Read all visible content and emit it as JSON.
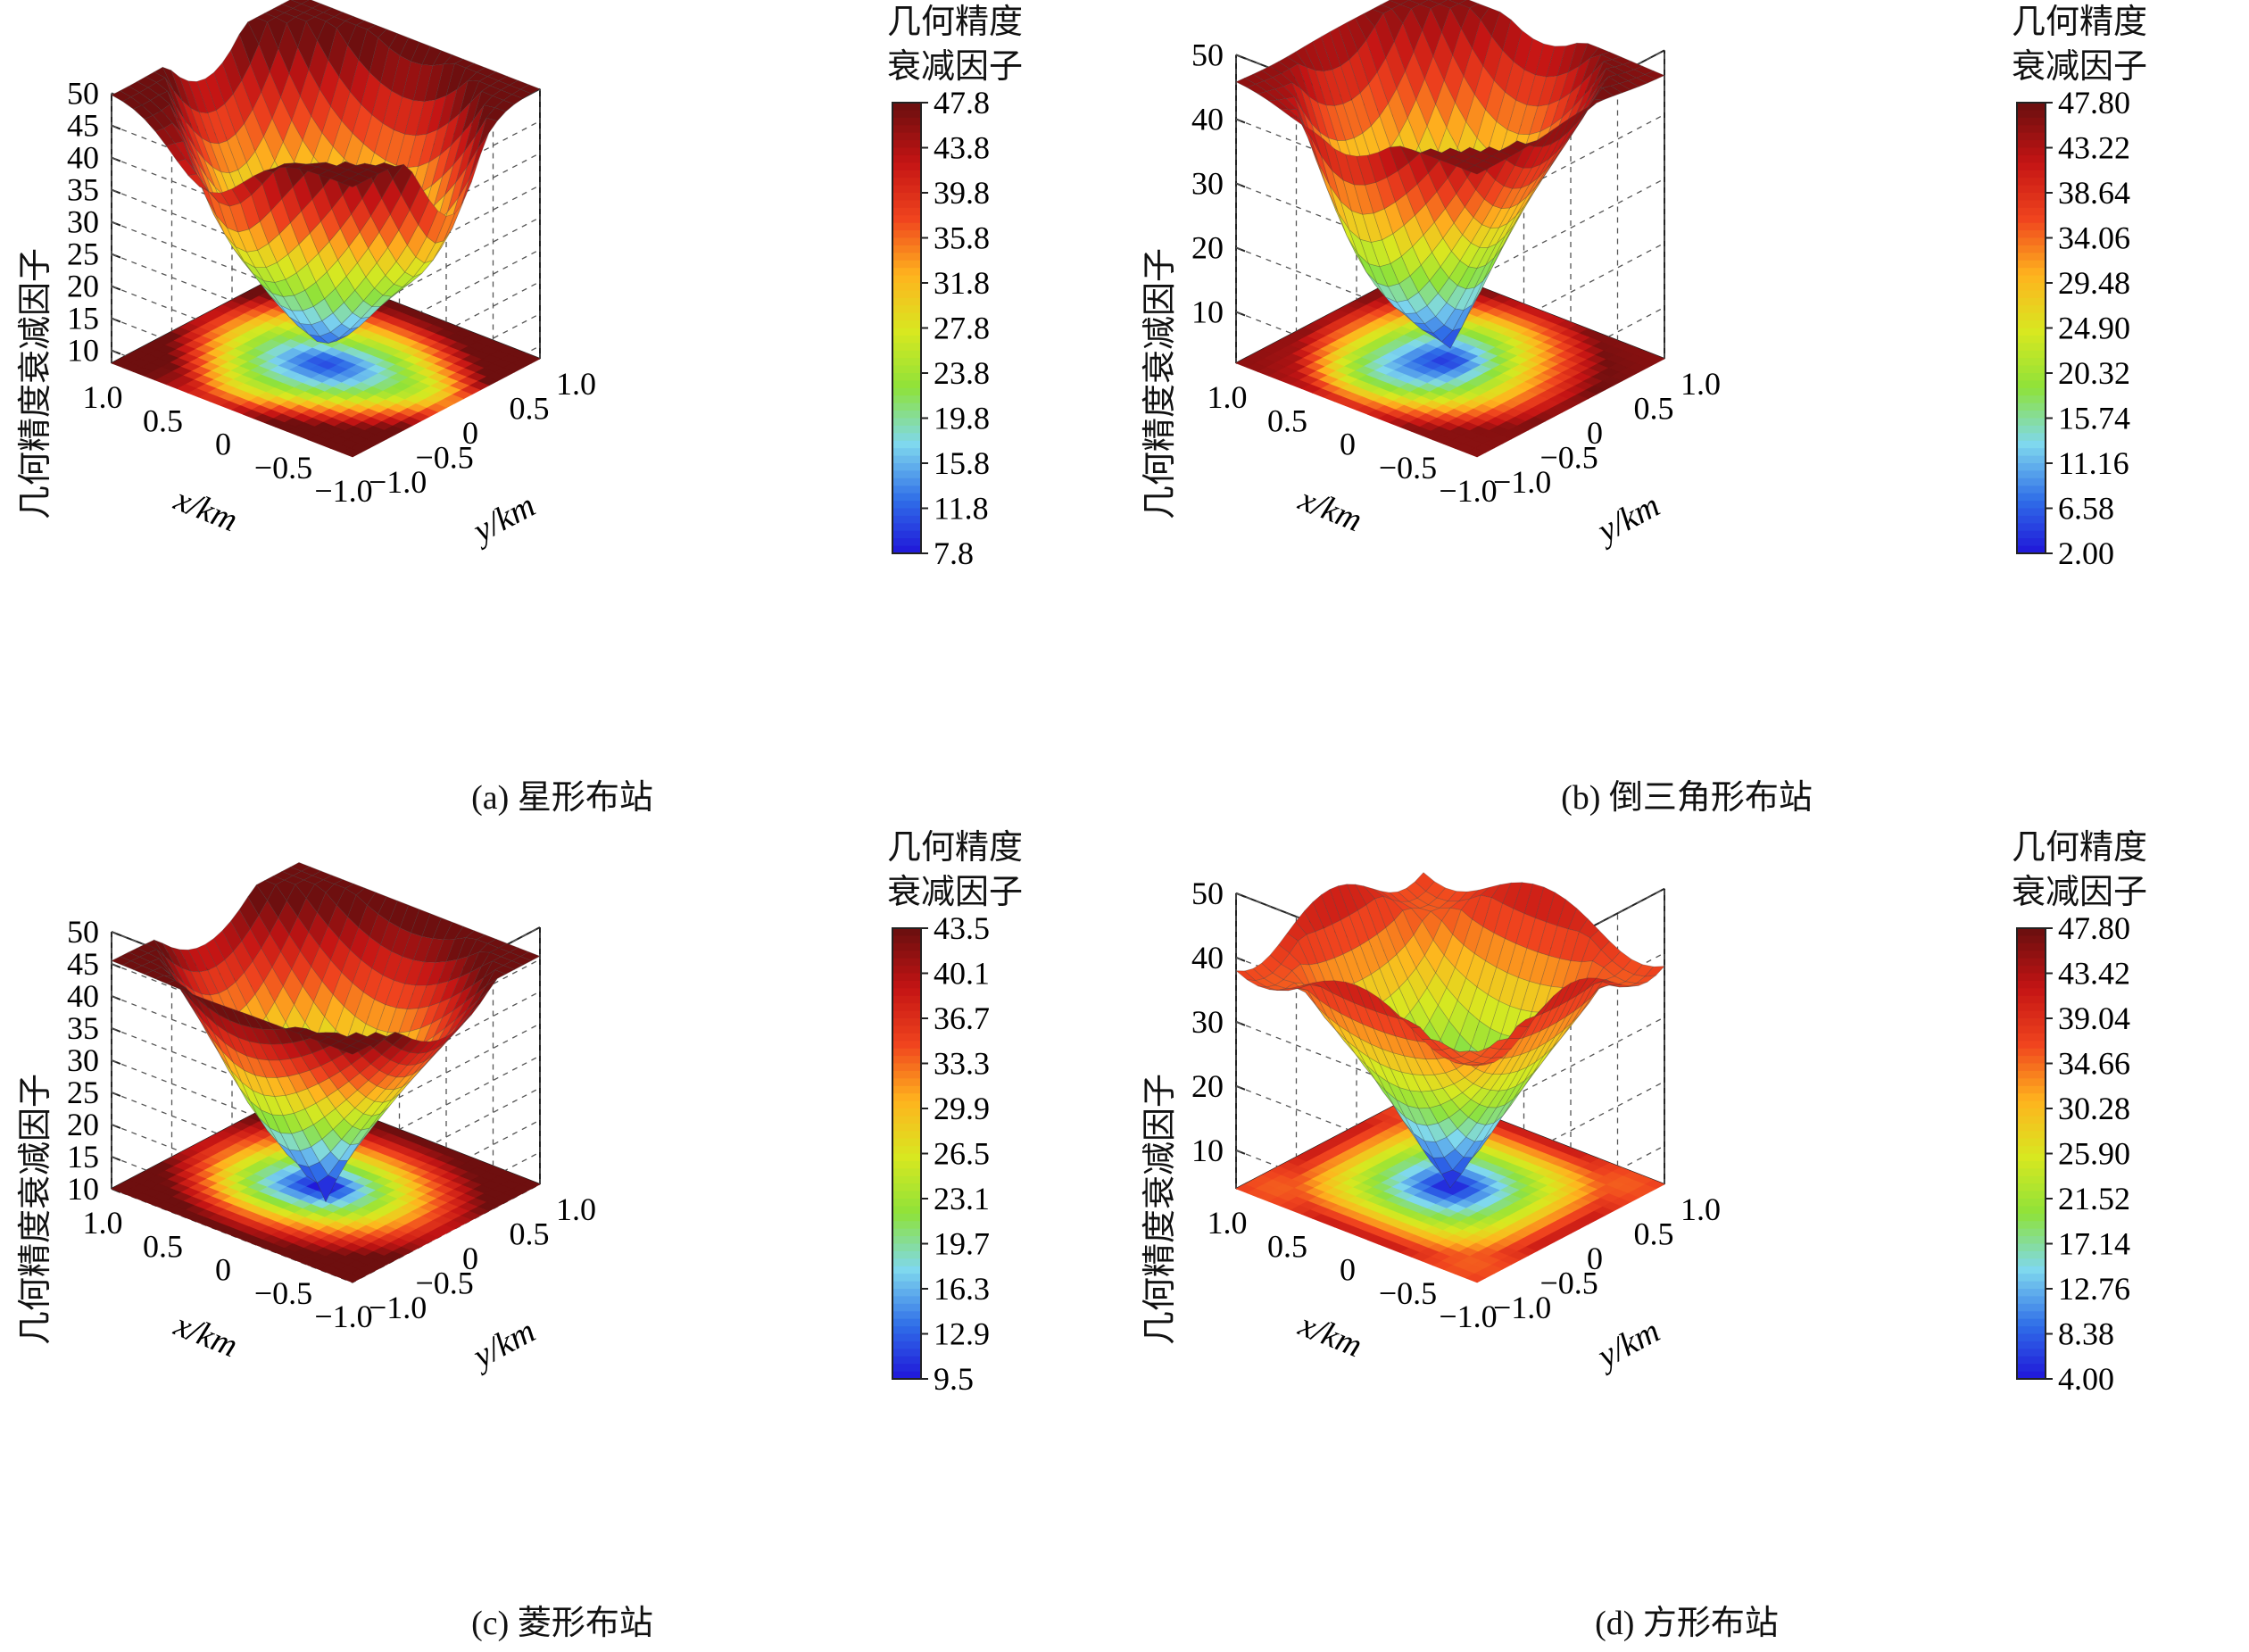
{
  "colorbar_title": [
    "几何精度",
    "衰减因子"
  ],
  "colors": {
    "cmap": [
      "#1f10d8",
      "#2f6de8",
      "#7fd8ee",
      "#8ee23a",
      "#d8e820",
      "#ffb41e",
      "#f0441e",
      "#c41414",
      "#6e0f0f"
    ]
  },
  "chart_data": [
    {
      "type": "surface3d",
      "caption": "(a) 星形布站",
      "xlabel": "x/km",
      "ylabel": "y/km",
      "zlabel": "几何精度衰减因子",
      "x_ticks": [
        "1.0",
        "0.5",
        "0",
        "−0.5",
        "−1.0"
      ],
      "y_ticks": [
        "−1.0",
        "−0.5",
        "0",
        "0.5",
        "1.0"
      ],
      "z_ticks": [
        "50",
        "45",
        "40",
        "35",
        "30",
        "25",
        "20",
        "15",
        "10"
      ],
      "zlim": [
        8,
        50
      ],
      "colorbar_ticks": [
        "47.8",
        "43.8",
        "39.8",
        "35.8",
        "31.8",
        "27.8",
        "23.8",
        "19.8",
        "15.8",
        "11.8",
        "7.8"
      ],
      "colorbar_range": [
        7.8,
        47.8
      ]
    },
    {
      "type": "surface3d",
      "caption": "(b) 倒三角形布站",
      "xlabel": "x/km",
      "ylabel": "y/km",
      "zlabel": "几何精度衰减因子",
      "x_ticks": [
        "1.0",
        "0.5",
        "0",
        "−0.5",
        "−1.0"
      ],
      "y_ticks": [
        "−1.0",
        "−0.5",
        "0",
        "0.5",
        "1.0"
      ],
      "z_ticks": [
        "50",
        "40",
        "30",
        "20",
        "10"
      ],
      "zlim": [
        2,
        50
      ],
      "colorbar_ticks": [
        "47.80",
        "43.22",
        "38.64",
        "34.06",
        "29.48",
        "24.90",
        "20.32",
        "15.74",
        "11.16",
        "6.58",
        "2.00"
      ],
      "colorbar_range": [
        2.0,
        47.8
      ]
    },
    {
      "type": "surface3d",
      "caption": "(c) 菱形布站",
      "xlabel": "x/km",
      "ylabel": "y/km",
      "zlabel": "几何精度衰减因子",
      "x_ticks": [
        "1.0",
        "0.5",
        "0",
        "−0.5",
        "−1.0"
      ],
      "y_ticks": [
        "−1.0",
        "−0.5",
        "0",
        "0.5",
        "1.0"
      ],
      "z_ticks": [
        "50",
        "45",
        "40",
        "35",
        "30",
        "25",
        "20",
        "15",
        "10"
      ],
      "zlim": [
        10,
        50
      ],
      "colorbar_ticks": [
        "43.5",
        "40.1",
        "36.7",
        "33.3",
        "29.9",
        "26.5",
        "23.1",
        "19.7",
        "16.3",
        "12.9",
        "9.5"
      ],
      "colorbar_range": [
        9.5,
        43.5
      ]
    },
    {
      "type": "surface3d",
      "caption": "(d) 方形布站",
      "xlabel": "x/km",
      "ylabel": "y/km",
      "zlabel": "几何精度衰减因子",
      "x_ticks": [
        "1.0",
        "0.5",
        "0",
        "−0.5",
        "−1.0"
      ],
      "y_ticks": [
        "−1.0",
        "−0.5",
        "0",
        "0.5",
        "1.0"
      ],
      "z_ticks": [
        "50",
        "40",
        "30",
        "20",
        "10"
      ],
      "zlim": [
        4,
        50
      ],
      "colorbar_ticks": [
        "47.80",
        "43.42",
        "39.04",
        "34.66",
        "30.28",
        "25.90",
        "21.52",
        "17.14",
        "12.76",
        "8.38",
        "4.00"
      ],
      "colorbar_range": [
        4.0,
        47.8
      ]
    }
  ]
}
